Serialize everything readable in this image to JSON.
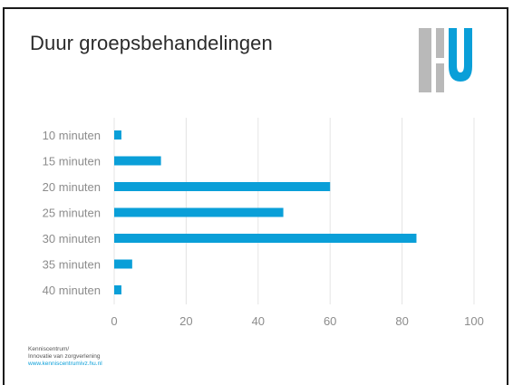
{
  "slide": {
    "title": "Duur groepsbehandelingen"
  },
  "logo": {
    "name": "HU",
    "colors": {
      "gray": "#b9b9b9",
      "blue": "#0a9fd8"
    }
  },
  "footer": {
    "line1": "Kenniscentrum/",
    "line2": "Innovatie van zorgverlening",
    "url": "www.kenniscentrumivz.hu.nl"
  },
  "chart_data": {
    "type": "bar",
    "orientation": "horizontal",
    "categories": [
      "10 minuten",
      "15 minuten",
      "20 minuten",
      "25 minuten",
      "30 minuten",
      "35 minuten",
      "40 minuten"
    ],
    "values": [
      2,
      13,
      60,
      47,
      84,
      5,
      2
    ],
    "xlim": [
      0,
      100
    ],
    "xticks": [
      0,
      20,
      40,
      60,
      80,
      100
    ],
    "grid": true,
    "bar_color": "#0a9fd8",
    "grid_color": "#e4e4e4",
    "label_color": "#8c8c8c"
  }
}
